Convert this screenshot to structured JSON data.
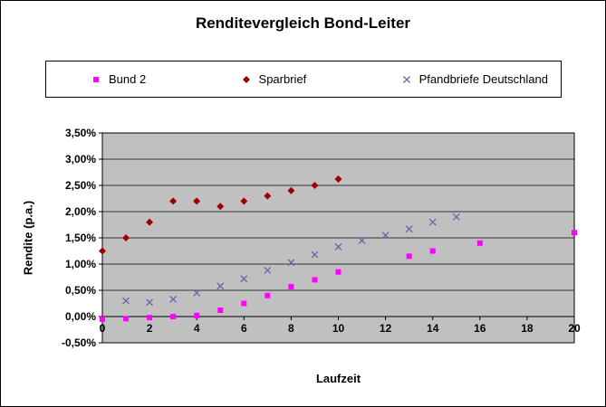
{
  "chart_data": {
    "type": "scatter",
    "title": "Renditevergleich Bond-Leiter",
    "xlabel": "Laufzeit",
    "ylabel": "Rendite (p.a.)",
    "xlim": [
      0,
      20
    ],
    "ylim": [
      -0.5,
      3.5
    ],
    "grid": "horizontal",
    "legend_position": "top",
    "plot_bg": "#C0C0C0",
    "y_ticks": [
      {
        "v": 3.5,
        "label": "3,50%"
      },
      {
        "v": 3.0,
        "label": "3,00%"
      },
      {
        "v": 2.5,
        "label": "2,50%"
      },
      {
        "v": 2.0,
        "label": "2,00%"
      },
      {
        "v": 1.5,
        "label": "1,50%"
      },
      {
        "v": 1.0,
        "label": "1,00%"
      },
      {
        "v": 0.5,
        "label": "0,50%"
      },
      {
        "v": 0.0,
        "label": "0,00%"
      },
      {
        "v": -0.5,
        "label": "-0,50%"
      }
    ],
    "x_ticks": [
      {
        "v": 0,
        "label": "0"
      },
      {
        "v": 2,
        "label": "2"
      },
      {
        "v": 4,
        "label": "4"
      },
      {
        "v": 6,
        "label": "6"
      },
      {
        "v": 8,
        "label": "8"
      },
      {
        "v": 10,
        "label": "10"
      },
      {
        "v": 12,
        "label": "12"
      },
      {
        "v": 14,
        "label": "14"
      },
      {
        "v": 16,
        "label": "16"
      },
      {
        "v": 18,
        "label": "18"
      },
      {
        "v": 20,
        "label": "20"
      }
    ],
    "series": [
      {
        "name": "Bund 2",
        "marker": "square",
        "color": "#FF00FF",
        "points": [
          [
            0,
            -0.05
          ],
          [
            1,
            -0.04
          ],
          [
            2,
            -0.02
          ],
          [
            3,
            0.0
          ],
          [
            4,
            0.02
          ],
          [
            5,
            0.12
          ],
          [
            6,
            0.25
          ],
          [
            7,
            0.4
          ],
          [
            8,
            0.57
          ],
          [
            9,
            0.7
          ],
          [
            10,
            0.85
          ],
          [
            13,
            1.15
          ],
          [
            14,
            1.25
          ],
          [
            16,
            1.4
          ],
          [
            20,
            1.6
          ]
        ]
      },
      {
        "name": "Sparbrief",
        "marker": "diamond",
        "color": "#990000",
        "points": [
          [
            0,
            1.25
          ],
          [
            1,
            1.5
          ],
          [
            2,
            1.8
          ],
          [
            3,
            2.2
          ],
          [
            4,
            2.2
          ],
          [
            5,
            2.1
          ],
          [
            6,
            2.2
          ],
          [
            7,
            2.3
          ],
          [
            8,
            2.4
          ],
          [
            9,
            2.5
          ],
          [
            10,
            2.62
          ]
        ]
      },
      {
        "name": "Pfandbriefe Deutschland",
        "marker": "x",
        "color": "#7B5AA6",
        "points": [
          [
            1,
            0.3
          ],
          [
            2,
            0.27
          ],
          [
            3,
            0.33
          ],
          [
            4,
            0.45
          ],
          [
            5,
            0.58
          ],
          [
            6,
            0.72
          ],
          [
            7,
            0.88
          ],
          [
            8,
            1.03
          ],
          [
            9,
            1.18
          ],
          [
            10,
            1.33
          ],
          [
            11,
            1.45
          ],
          [
            12,
            1.55
          ],
          [
            13,
            1.67
          ],
          [
            14,
            1.8
          ],
          [
            15,
            1.9
          ]
        ]
      }
    ]
  }
}
